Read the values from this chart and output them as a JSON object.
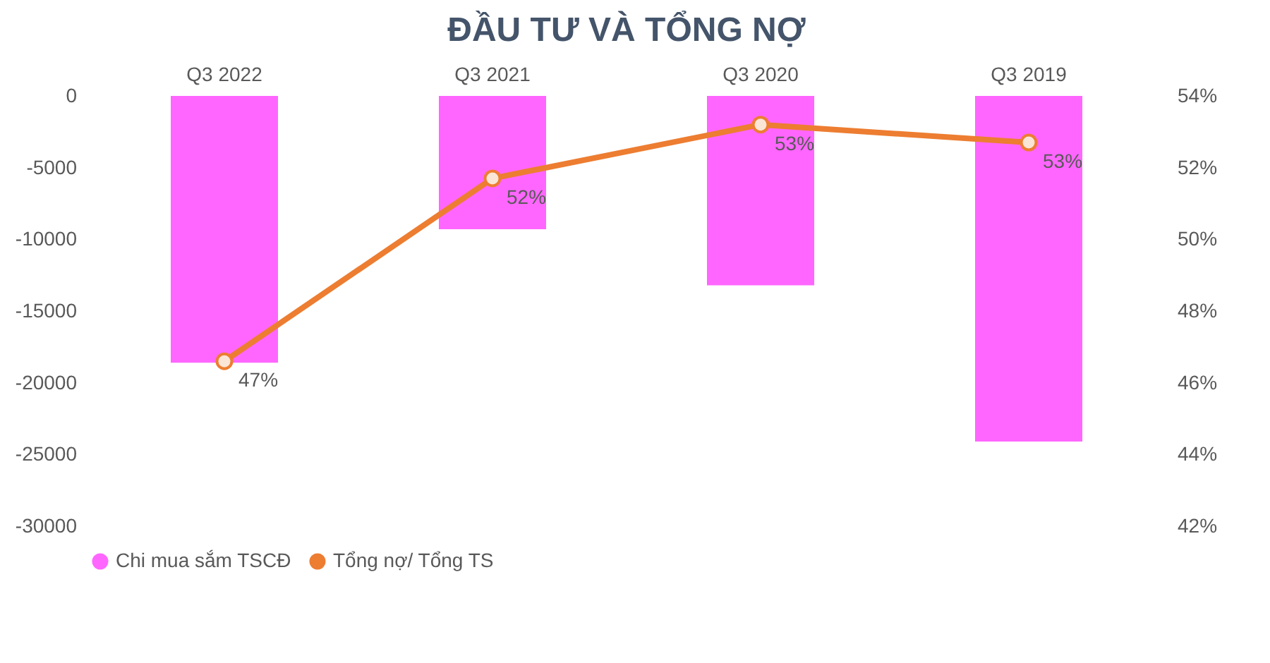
{
  "chart_data": {
    "type": "bar",
    "title": "ĐẦU TƯ VÀ TỔNG NỢ",
    "categories": [
      "Q3 2022",
      "Q3 2021",
      "Q3 2020",
      "Q3 2019"
    ],
    "series": [
      {
        "name": "Chi mua sắm TSCĐ",
        "color": "#ff66ff",
        "values": [
          -18600,
          -9300,
          -13200,
          -24100
        ]
      },
      {
        "name": "Tổng nợ/ Tổng TS",
        "type": "line",
        "axis": "y2",
        "color": "#ed7d31",
        "marker": "circle",
        "line_style": "solid",
        "values": [
          46.6,
          51.7,
          53.2,
          52.7
        ],
        "value_labels": [
          "47%",
          "52%",
          "53%",
          "53%"
        ]
      }
    ],
    "ylim": [
      -30000,
      0
    ],
    "yticks": [
      -30000,
      -25000,
      -20000,
      -15000,
      -10000,
      -5000,
      0
    ],
    "y2lim": [
      42,
      54
    ],
    "y2ticks": [
      {
        "value": 42,
        "label": "42%"
      },
      {
        "value": 44,
        "label": "44%"
      },
      {
        "value": 46,
        "label": "46%"
      },
      {
        "value": 48,
        "label": "48%"
      },
      {
        "value": 50,
        "label": "50%"
      },
      {
        "value": 52,
        "label": "52%"
      },
      {
        "value": 54,
        "label": "54%"
      }
    ],
    "grid": false,
    "legend": "bottom"
  }
}
